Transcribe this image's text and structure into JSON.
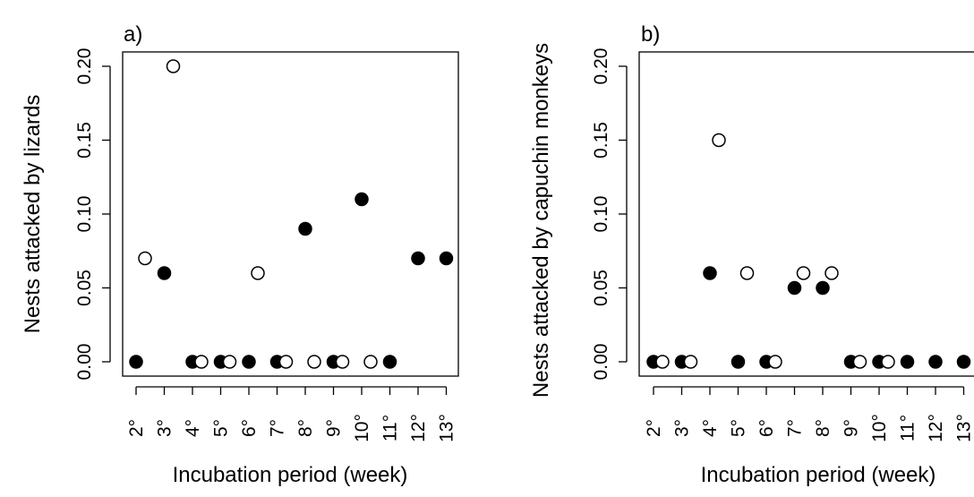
{
  "chart_data": [
    {
      "panel_label": "a)",
      "type": "scatter",
      "xlabel": "Incubation period (week)",
      "ylabel": "Nests attacked by lizards",
      "ylim": [
        0,
        0.2
      ],
      "yticks": [
        "0.00",
        "0.05",
        "0.10",
        "0.15",
        "0.20"
      ],
      "xticks": [
        "2°",
        "3°",
        "4°",
        "5°",
        "6°",
        "7°",
        "8°",
        "9°",
        "10°",
        "11°",
        "12°",
        "13°"
      ],
      "series": [
        {
          "marker": "filled-circle",
          "values": [
            0,
            0.06,
            0,
            0,
            0,
            0,
            0.09,
            0,
            0.11,
            0,
            0.07,
            0.07
          ]
        },
        {
          "marker": "open-circle",
          "values": [
            0.07,
            0.2,
            0,
            0,
            0.06,
            0,
            0,
            0,
            0,
            null,
            null,
            null
          ]
        }
      ]
    },
    {
      "panel_label": "b)",
      "type": "scatter",
      "xlabel": "Incubation period (week)",
      "ylabel": "Nests attacked by capuchin monkeys",
      "ylim": [
        0,
        0.2
      ],
      "yticks": [
        "0.00",
        "0.05",
        "0.10",
        "0.15",
        "0.20"
      ],
      "xticks": [
        "2°",
        "3°",
        "4°",
        "5°",
        "6°",
        "7°",
        "8°",
        "9°",
        "10°",
        "11°",
        "12°",
        "13°"
      ],
      "series": [
        {
          "marker": "filled-circle",
          "values": [
            0,
            0,
            0.06,
            0,
            0,
            0.05,
            0.05,
            0,
            0,
            0,
            0,
            0
          ]
        },
        {
          "marker": "open-circle",
          "values": [
            0,
            0,
            0.15,
            0.06,
            0,
            0.06,
            0.06,
            0,
            0,
            null,
            null,
            null
          ]
        }
      ]
    }
  ]
}
